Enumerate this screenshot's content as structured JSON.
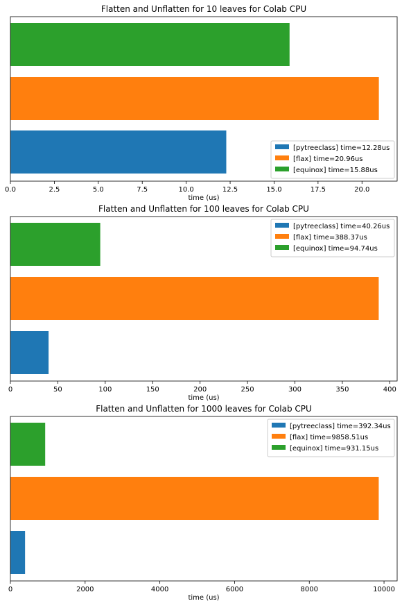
{
  "chart_data": [
    {
      "type": "bar",
      "orientation": "horizontal",
      "title": "Flatten and Unflatten for 10 leaves for Colab CPU",
      "xlabel": "time (us)",
      "ylabel": "",
      "xlim": [
        0,
        22.0
      ],
      "xticks": [
        0,
        2.5,
        5,
        7.5,
        10,
        12.5,
        15,
        17.5,
        20
      ],
      "xtick_labels": [
        "0.0",
        "2.5",
        "5.0",
        "7.5",
        "10.0",
        "12.5",
        "15.0",
        "17.5",
        "20.0"
      ],
      "legend_position": "lower-right",
      "bars": [
        {
          "label": "[pytreeclass] time=12.28us",
          "value": 12.28,
          "color": "#1f77b4"
        },
        {
          "label": "[flax] time=20.96us",
          "value": 20.96,
          "color": "#ff7f0e"
        },
        {
          "label": "[equinox] time=15.88us",
          "value": 15.88,
          "color": "#2ca02c"
        }
      ]
    },
    {
      "type": "bar",
      "orientation": "horizontal",
      "title": "Flatten and Unflatten for 100 leaves for Colab CPU",
      "xlabel": "time (us)",
      "ylabel": "",
      "xlim": [
        0,
        407.8
      ],
      "xticks": [
        0,
        50,
        100,
        150,
        200,
        250,
        300,
        350,
        400
      ],
      "xtick_labels": [
        "0",
        "50",
        "100",
        "150",
        "200",
        "250",
        "300",
        "350",
        "400"
      ],
      "legend_position": "upper-right",
      "bars": [
        {
          "label": "[pytreeclass] time=40.26us",
          "value": 40.26,
          "color": "#1f77b4"
        },
        {
          "label": "[flax] time=388.37us",
          "value": 388.37,
          "color": "#ff7f0e"
        },
        {
          "label": "[equinox] time=94.74us",
          "value": 94.74,
          "color": "#2ca02c"
        }
      ]
    },
    {
      "type": "bar",
      "orientation": "horizontal",
      "title": "Flatten and Unflatten for 1000 leaves for Colab CPU",
      "xlabel": "time (us)",
      "ylabel": "",
      "xlim": [
        0,
        10351.4
      ],
      "xticks": [
        0,
        2000,
        4000,
        6000,
        8000,
        10000
      ],
      "xtick_labels": [
        "0",
        "2000",
        "4000",
        "6000",
        "8000",
        "10000"
      ],
      "legend_position": "upper-right",
      "bars": [
        {
          "label": "[pytreeclass] time=392.34us",
          "value": 392.34,
          "color": "#1f77b4"
        },
        {
          "label": "[flax] time=9858.51us",
          "value": 9858.51,
          "color": "#ff7f0e"
        },
        {
          "label": "[equinox] time=931.15us",
          "value": 931.15,
          "color": "#2ca02c"
        }
      ]
    }
  ]
}
